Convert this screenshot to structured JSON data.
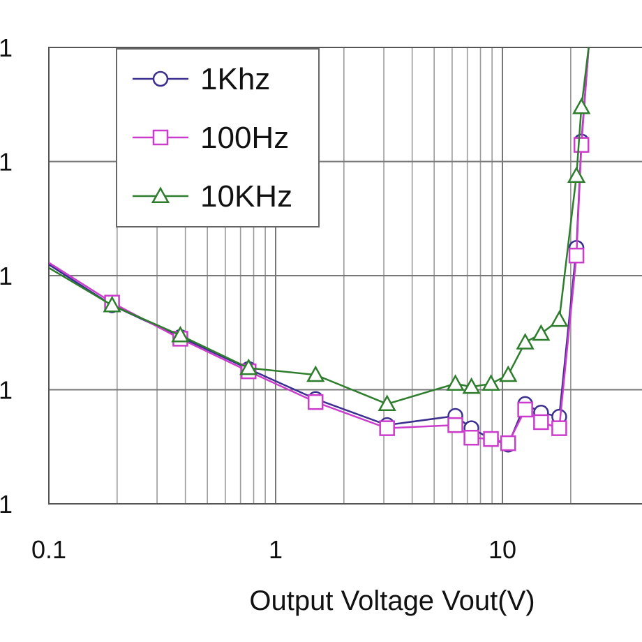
{
  "chart_data": {
    "type": "line",
    "xlabel": "Output Voltage Vout(V)",
    "x_scale": "log",
    "y_scale": "log",
    "xlim": [
      0.1,
      28
    ],
    "ylim": [
      0.0001,
      1
    ],
    "x_tick_labels": [
      {
        "value": 0.1,
        "label": "0.1"
      },
      {
        "value": 1,
        "label": "1"
      },
      {
        "value": 10,
        "label": "10"
      }
    ],
    "y_tick_labels": [
      {
        "value": 1,
        "label": "1"
      },
      {
        "value": 0.1,
        "label": "1"
      },
      {
        "value": 0.01,
        "label": "1"
      },
      {
        "value": 0.001,
        "label": "1"
      },
      {
        "value": 0.0001,
        "label": "1"
      }
    ],
    "grid": true,
    "legend_position": "top-left",
    "series": [
      {
        "name": "1Khz",
        "color": "#3a2f8f",
        "marker": "circle",
        "x": [
          0.1,
          0.19,
          0.38,
          0.76,
          1.5,
          3.1,
          6.2,
          7.3,
          8.9,
          10.6,
          12.6,
          14.8,
          17.8,
          21.2,
          22.3,
          24
        ],
        "y": [
          0.0125,
          0.0055,
          0.0029,
          0.00152,
          0.00083,
          0.00049,
          0.00059,
          0.00046,
          0.00037,
          0.00033,
          0.00075,
          0.00063,
          0.00058,
          0.0175,
          0.15,
          1
        ]
      },
      {
        "name": "100Hz",
        "color": "#cc3ccc",
        "marker": "square",
        "x": [
          0.1,
          0.19,
          0.38,
          0.76,
          1.5,
          3.1,
          6.2,
          7.3,
          8.9,
          10.6,
          12.6,
          14.8,
          17.8,
          21.2,
          22.3,
          24
        ],
        "y": [
          0.013,
          0.0058,
          0.0028,
          0.00145,
          0.00078,
          0.00046,
          0.00049,
          0.00038,
          0.00037,
          0.00034,
          0.00067,
          0.00052,
          0.00046,
          0.015,
          0.14,
          1
        ]
      },
      {
        "name": "10KHz",
        "color": "#2d7d2d",
        "marker": "triangle",
        "x": [
          0.1,
          0.19,
          0.38,
          0.76,
          1.5,
          3.1,
          6.2,
          7.3,
          8.9,
          10.6,
          12.6,
          14.8,
          17.8,
          21.2,
          22.3,
          24
        ],
        "y": [
          0.0117,
          0.0055,
          0.003,
          0.00155,
          0.00135,
          0.00075,
          0.00113,
          0.00106,
          0.00113,
          0.00135,
          0.0026,
          0.0031,
          0.0041,
          0.075,
          0.3,
          1
        ]
      }
    ]
  }
}
